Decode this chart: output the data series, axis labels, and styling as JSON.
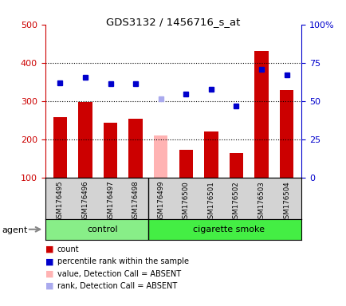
{
  "title": "GDS3132 / 1456716_s_at",
  "samples": [
    "GSM176495",
    "GSM176496",
    "GSM176497",
    "GSM176498",
    "GSM176499",
    "GSM176500",
    "GSM176501",
    "GSM176502",
    "GSM176503",
    "GSM176504"
  ],
  "bar_heights": [
    258,
    297,
    243,
    254,
    210,
    172,
    220,
    163,
    430,
    328
  ],
  "bar_colors": [
    "#cc0000",
    "#cc0000",
    "#cc0000",
    "#cc0000",
    "#ffb3b3",
    "#cc0000",
    "#cc0000",
    "#cc0000",
    "#cc0000",
    "#cc0000"
  ],
  "percentile_values": [
    348,
    362,
    345,
    346,
    305,
    318,
    330,
    287,
    383,
    368
  ],
  "percentile_colors": [
    "#0000cc",
    "#0000cc",
    "#0000cc",
    "#0000cc",
    "#aaaaee",
    "#0000cc",
    "#0000cc",
    "#0000cc",
    "#0000cc",
    "#0000cc"
  ],
  "ylim_left": [
    100,
    500
  ],
  "ylim_right": [
    0,
    100
  ],
  "yticks_left": [
    100,
    200,
    300,
    400,
    500
  ],
  "yticks_right": [
    0,
    25,
    50,
    75,
    100
  ],
  "ytick_labels_left": [
    "100",
    "200",
    "300",
    "400",
    "500"
  ],
  "ytick_labels_right": [
    "0",
    "25",
    "50",
    "75",
    "100%"
  ],
  "left_axis_color": "#cc0000",
  "right_axis_color": "#0000cc",
  "bg_color": "#ffffff",
  "legend_items": [
    {
      "color": "#cc0000",
      "label": "count"
    },
    {
      "color": "#0000cc",
      "label": "percentile rank within the sample"
    },
    {
      "color": "#ffb3b3",
      "label": "value, Detection Call = ABSENT"
    },
    {
      "color": "#aaaaee",
      "label": "rank, Detection Call = ABSENT"
    }
  ]
}
